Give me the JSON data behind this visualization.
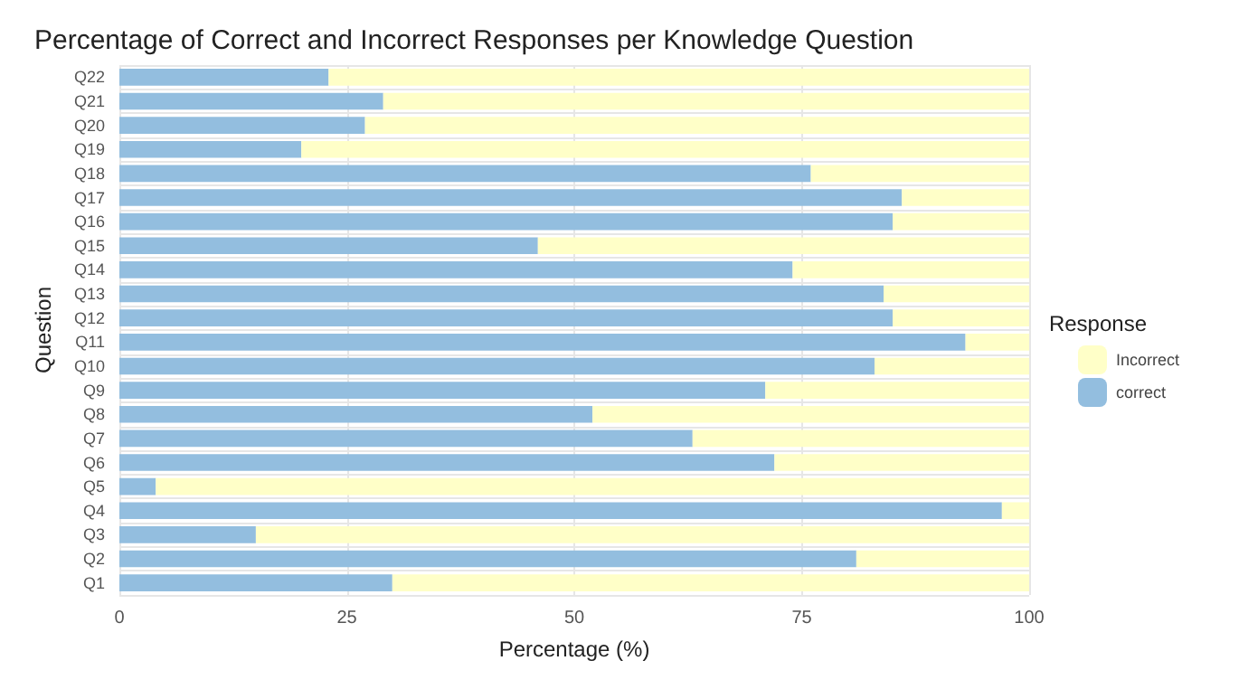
{
  "chart_data": {
    "type": "bar",
    "orientation": "horizontal",
    "stacked": true,
    "title": "Percentage of Correct and Incorrect Responses per Knowledge Question",
    "xlabel": "Percentage (%)",
    "ylabel": "Question",
    "legend_title": "Response",
    "legend": "right",
    "grid": true,
    "categories": [
      "Q22",
      "Q21",
      "Q20",
      "Q19",
      "Q18",
      "Q17",
      "Q16",
      "Q15",
      "Q14",
      "Q13",
      "Q12",
      "Q11",
      "Q10",
      "Q9",
      "Q8",
      "Q7",
      "Q6",
      "Q5",
      "Q4",
      "Q3",
      "Q2",
      "Q1"
    ],
    "xlim": [
      0,
      100
    ],
    "xticks": [
      0,
      25,
      50,
      75,
      100
    ],
    "series": [
      {
        "name": "correct",
        "color": "#93bedf",
        "values": [
          23,
          29,
          27,
          20,
          76,
          86,
          85,
          46,
          74,
          84,
          85,
          93,
          83,
          71,
          52,
          63,
          72,
          4,
          97,
          15,
          81,
          30
        ]
      },
      {
        "name": "Incorrect",
        "color": "#ffffc8",
        "values": [
          77,
          71,
          73,
          80,
          24,
          14,
          15,
          54,
          26,
          16,
          15,
          7,
          17,
          29,
          48,
          37,
          28,
          96,
          3,
          85,
          19,
          70
        ]
      }
    ]
  }
}
